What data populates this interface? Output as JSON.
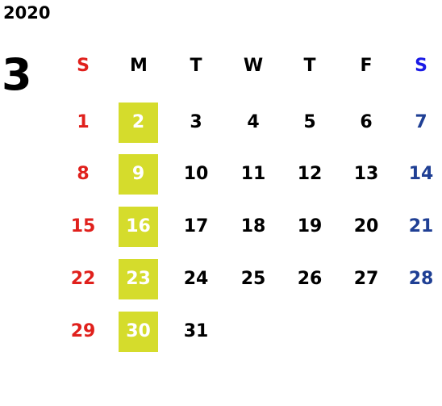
{
  "year": "2020",
  "month": "3",
  "weekdays": [
    "S",
    "M",
    "T",
    "W",
    "T",
    "F",
    "S"
  ],
  "weeks": [
    [
      "1",
      "2",
      "3",
      "4",
      "5",
      "6",
      "7"
    ],
    [
      "8",
      "9",
      "10",
      "11",
      "12",
      "13",
      "14"
    ],
    [
      "15",
      "16",
      "17",
      "18",
      "19",
      "20",
      "21"
    ],
    [
      "22",
      "23",
      "24",
      "25",
      "26",
      "27",
      "28"
    ],
    [
      "29",
      "30",
      "31"
    ]
  ]
}
